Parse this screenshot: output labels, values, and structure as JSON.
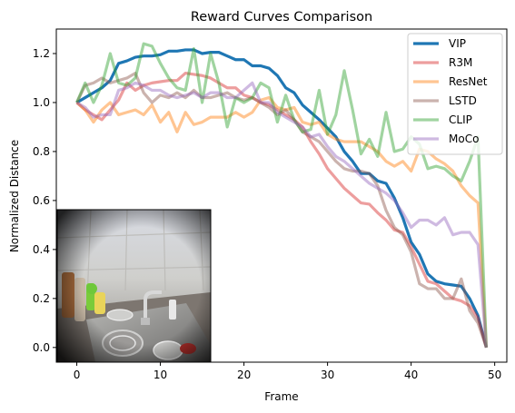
{
  "chart_data": {
    "type": "line",
    "title": "Reward Curves Comparison",
    "xlabel": "Frame",
    "ylabel": "Normalized Distance",
    "xlim": [
      -2.45,
      51.45
    ],
    "ylim": [
      -0.06,
      1.3
    ],
    "xticks": [
      0,
      10,
      20,
      30,
      40,
      50
    ],
    "yticks": [
      0.0,
      0.2,
      0.4,
      0.6,
      0.8,
      1.0,
      1.2
    ],
    "xtick_labels": [
      "0",
      "10",
      "20",
      "30",
      "40",
      "50"
    ],
    "ytick_labels": [
      "0.0",
      "0.2",
      "0.4",
      "0.6",
      "0.8",
      "1.0",
      "1.2"
    ],
    "grid": false,
    "legend_position": "top-right",
    "inset_image": "kitchen-sink-photo",
    "series": [
      {
        "name": "VIP",
        "color": "#1f77b4",
        "alpha": 1.0,
        "width": 3.2,
        "values": [
          1.0,
          1.02,
          1.04,
          1.06,
          1.09,
          1.16,
          1.17,
          1.185,
          1.19,
          1.19,
          1.195,
          1.21,
          1.21,
          1.215,
          1.215,
          1.2,
          1.205,
          1.205,
          1.19,
          1.175,
          1.175,
          1.15,
          1.15,
          1.14,
          1.11,
          1.06,
          1.04,
          0.99,
          0.96,
          0.93,
          0.895,
          0.86,
          0.8,
          0.76,
          0.71,
          0.71,
          0.68,
          0.67,
          0.61,
          0.53,
          0.43,
          0.38,
          0.3,
          0.27,
          0.26,
          0.255,
          0.25,
          0.2,
          0.13,
          0.0
        ]
      },
      {
        "name": "R3M",
        "color": "#d62728",
        "alpha": 0.45,
        "width": 3.2,
        "values": [
          1.0,
          0.97,
          0.95,
          0.93,
          0.97,
          1.01,
          1.08,
          1.05,
          1.07,
          1.08,
          1.085,
          1.09,
          1.09,
          1.12,
          1.115,
          1.11,
          1.1,
          1.08,
          1.06,
          1.06,
          1.03,
          1.02,
          1.0,
          0.99,
          0.97,
          0.95,
          0.93,
          0.9,
          0.84,
          0.79,
          0.73,
          0.69,
          0.65,
          0.62,
          0.59,
          0.585,
          0.55,
          0.52,
          0.48,
          0.47,
          0.41,
          0.34,
          0.27,
          0.26,
          0.23,
          0.2,
          0.19,
          0.17,
          0.12,
          0.0
        ]
      },
      {
        "name": "ResNet",
        "color": "#ff7f0e",
        "alpha": 0.45,
        "width": 3.2,
        "values": [
          1.0,
          0.97,
          0.92,
          0.97,
          1.0,
          0.95,
          0.96,
          0.97,
          0.95,
          0.99,
          0.92,
          0.96,
          0.88,
          0.96,
          0.91,
          0.92,
          0.94,
          0.94,
          0.94,
          0.96,
          0.94,
          0.96,
          1.01,
          1.02,
          0.98,
          0.97,
          0.98,
          0.92,
          0.91,
          0.92,
          0.87,
          0.85,
          0.84,
          0.84,
          0.84,
          0.82,
          0.8,
          0.76,
          0.74,
          0.76,
          0.72,
          0.81,
          0.8,
          0.77,
          0.75,
          0.72,
          0.66,
          0.62,
          0.59,
          0.0
        ]
      },
      {
        "name": "LSTD",
        "color": "#8c564b",
        "alpha": 0.45,
        "width": 3.2,
        "values": [
          1.0,
          1.07,
          1.08,
          1.1,
          1.08,
          1.09,
          1.1,
          1.12,
          1.04,
          1.0,
          1.03,
          1.02,
          1.04,
          1.02,
          1.05,
          1.02,
          1.02,
          1.03,
          1.04,
          1.02,
          1.01,
          1.02,
          1.0,
          0.98,
          0.95,
          0.97,
          0.93,
          0.88,
          0.86,
          0.84,
          0.8,
          0.76,
          0.73,
          0.72,
          0.72,
          0.71,
          0.66,
          0.56,
          0.49,
          0.46,
          0.39,
          0.26,
          0.24,
          0.24,
          0.2,
          0.2,
          0.28,
          0.15,
          0.1,
          0.0
        ]
      },
      {
        "name": "CLIP",
        "color": "#2ca02c",
        "alpha": 0.45,
        "width": 3.2,
        "values": [
          1.0,
          1.08,
          1.0,
          1.07,
          1.2,
          1.08,
          1.07,
          1.1,
          1.24,
          1.23,
          1.16,
          1.1,
          1.06,
          1.05,
          1.22,
          1.0,
          1.2,
          1.08,
          0.9,
          1.02,
          1.0,
          1.02,
          1.08,
          1.06,
          0.92,
          1.03,
          0.93,
          0.88,
          0.89,
          1.05,
          0.87,
          0.95,
          1.13,
          0.97,
          0.79,
          0.85,
          0.78,
          0.96,
          0.8,
          0.81,
          0.86,
          0.83,
          0.73,
          0.74,
          0.73,
          0.7,
          0.68,
          0.76,
          0.86,
          0.0
        ]
      },
      {
        "name": "MoCo",
        "color": "#9467bd",
        "alpha": 0.45,
        "width": 3.2,
        "values": [
          1.0,
          0.98,
          0.94,
          0.95,
          0.95,
          1.05,
          1.06,
          1.08,
          1.07,
          1.05,
          1.05,
          1.03,
          1.02,
          1.03,
          1.04,
          1.02,
          1.04,
          1.04,
          1.02,
          1.02,
          1.05,
          1.08,
          1.0,
          1.0,
          0.96,
          0.94,
          0.92,
          0.9,
          0.86,
          0.87,
          0.82,
          0.78,
          0.76,
          0.73,
          0.7,
          0.67,
          0.65,
          0.63,
          0.6,
          0.55,
          0.49,
          0.52,
          0.52,
          0.5,
          0.53,
          0.46,
          0.47,
          0.47,
          0.42,
          0.0
        ]
      }
    ]
  }
}
